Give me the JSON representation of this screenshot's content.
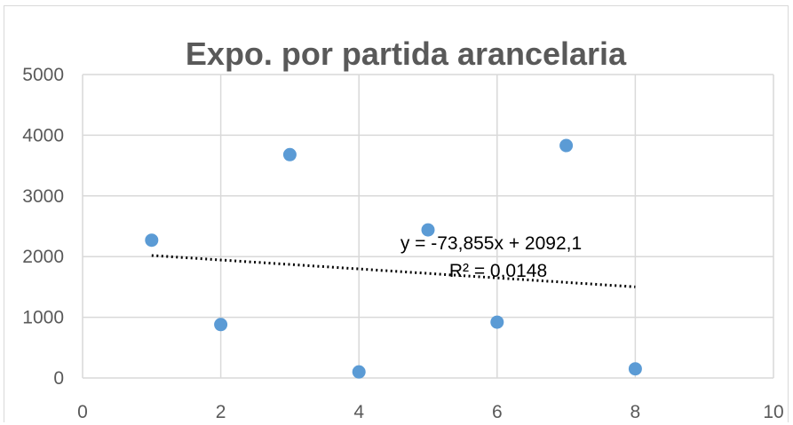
{
  "chart_data": {
    "type": "scatter",
    "title": "Expo. por partida arancelaria",
    "xlabel": "",
    "ylabel": "",
    "xlim": [
      0,
      10
    ],
    "ylim": [
      0,
      5000
    ],
    "x_ticks": [
      "0",
      "2",
      "4",
      "6",
      "8",
      "10"
    ],
    "y_ticks": [
      "0",
      "1000",
      "2000",
      "3000",
      "4000",
      "5000"
    ],
    "grid": true,
    "legend": "none",
    "series": [
      {
        "color": "#5b9bd5",
        "points": [
          {
            "x": 1,
            "y": 2270
          },
          {
            "x": 2,
            "y": 880
          },
          {
            "x": 3,
            "y": 3680
          },
          {
            "x": 4,
            "y": 100
          },
          {
            "x": 5,
            "y": 2440
          },
          {
            "x": 6,
            "y": 920
          },
          {
            "x": 7,
            "y": 3830
          },
          {
            "x": 8,
            "y": 150
          }
        ]
      }
    ],
    "trendline": {
      "type": "linear",
      "slope": -73.855,
      "intercept": 2092.1,
      "x_range": [
        1,
        8
      ],
      "style": "dotted",
      "color": "#000000",
      "equation_label": "y = -73,855x + 2092,1",
      "r2_label": "R² = 0,0148"
    }
  }
}
